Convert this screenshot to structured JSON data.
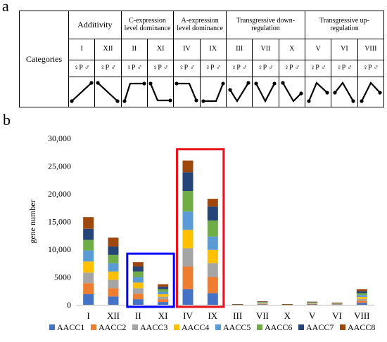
{
  "panel_a": {
    "label": "a",
    "row_header": "Categories",
    "groups": [
      {
        "label": "Additivity",
        "span": 2
      },
      {
        "label": "C-expression level dominance",
        "span": 2
      },
      {
        "label": "A-expression level dominance",
        "span": 2
      },
      {
        "label": "Transgressive down-regulation",
        "span": 3
      },
      {
        "label": "Transgressive up-regulation",
        "span": 3
      }
    ],
    "columns": [
      {
        "roman": "I",
        "symbols": "♀P ♂",
        "pattern": "up"
      },
      {
        "roman": "XII",
        "symbols": "♀P ♂",
        "pattern": "down"
      },
      {
        "roman": "II",
        "symbols": "♀P ♂",
        "pattern": "rise-flat"
      },
      {
        "roman": "XI",
        "symbols": "♀P ♂",
        "pattern": "drop-flat"
      },
      {
        "roman": "IV",
        "symbols": "♀P ♂",
        "pattern": "flat-drop"
      },
      {
        "roman": "IX",
        "symbols": "♀P ♂",
        "pattern": "flat-rise"
      },
      {
        "roman": "III",
        "symbols": "♀P ♂",
        "pattern": "v-high-right"
      },
      {
        "roman": "VII",
        "symbols": "♀P ♂",
        "pattern": "v-symmetric"
      },
      {
        "roman": "X",
        "symbols": "♀P ♂",
        "pattern": "v-high-left"
      },
      {
        "roman": "V",
        "symbols": "♀P ♂",
        "pattern": "peak-high-left"
      },
      {
        "roman": "VI",
        "symbols": "♀P ♂",
        "pattern": "peak-high-left-2"
      },
      {
        "roman": "VIII",
        "symbols": "♀P ♂",
        "pattern": "peak-high-right"
      }
    ]
  },
  "panel_b": {
    "label": "b",
    "highlight_colors": {
      "blue": "#0000ff",
      "red": "#e8141c"
    }
  },
  "chart_data": {
    "type": "bar",
    "stacked": true,
    "ylabel": "gene number",
    "xlabel": "",
    "ylim": [
      0,
      30000
    ],
    "yticks": [
      0,
      5000,
      10000,
      15000,
      20000,
      25000,
      30000
    ],
    "ytick_labels": [
      "0",
      "5000",
      "10,000",
      "15,000",
      "20,000",
      "25,000",
      "30,000"
    ],
    "categories": [
      "I",
      "XII",
      "II",
      "XI",
      "IV",
      "IX",
      "III",
      "VII",
      "X",
      "V",
      "VI",
      "VIII"
    ],
    "series": [
      {
        "name": "AACC1",
        "color": "#4472c4",
        "values": [
          1900,
          1500,
          1000,
          500,
          2800,
          2100,
          15,
          80,
          15,
          70,
          50,
          350
        ]
      },
      {
        "name": "AACC2",
        "color": "#ed7d31",
        "values": [
          2000,
          1500,
          1000,
          500,
          4100,
          2900,
          15,
          80,
          15,
          70,
          50,
          350
        ]
      },
      {
        "name": "AACC3",
        "color": "#a5a5a5",
        "values": [
          1900,
          1500,
          1000,
          450,
          3300,
          2500,
          15,
          80,
          15,
          70,
          50,
          350
        ]
      },
      {
        "name": "AACC4",
        "color": "#ffc000",
        "values": [
          2000,
          1500,
          1000,
          450,
          3300,
          2400,
          15,
          80,
          15,
          70,
          50,
          350
        ]
      },
      {
        "name": "AACC5",
        "color": "#5b9bd5",
        "values": [
          2000,
          1500,
          1000,
          450,
          3300,
          2400,
          15,
          80,
          15,
          70,
          50,
          350
        ]
      },
      {
        "name": "AACC6",
        "color": "#70ad47",
        "values": [
          1900,
          1500,
          1000,
          450,
          3700,
          2900,
          15,
          80,
          15,
          70,
          50,
          350
        ]
      },
      {
        "name": "AACC7",
        "color": "#264478",
        "values": [
          2000,
          1500,
          900,
          450,
          3400,
          2500,
          15,
          80,
          15,
          70,
          50,
          350
        ]
      },
      {
        "name": "AACC8",
        "color": "#9e480e",
        "values": [
          2100,
          1600,
          800,
          450,
          2100,
          1400,
          15,
          80,
          15,
          70,
          50,
          350
        ]
      }
    ],
    "highlight_boxes": [
      {
        "color": "blue",
        "categories": [
          "II",
          "XI"
        ]
      },
      {
        "color": "red",
        "categories": [
          "IV",
          "IX"
        ]
      }
    ],
    "grid": false,
    "legend": "bottom"
  }
}
